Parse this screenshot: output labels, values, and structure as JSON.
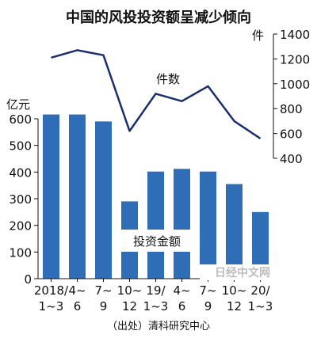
{
  "chart_data": {
    "type": "bar",
    "title": "中国的风投投资额呈减少倾向",
    "categories": [
      {
        "line1": "2018/",
        "line2": "1~3"
      },
      {
        "line1": "4~",
        "line2": "6"
      },
      {
        "line1": "7~",
        "line2": "9"
      },
      {
        "line1": "10~",
        "line2": "12"
      },
      {
        "line1": "19/",
        "line2": "1~3"
      },
      {
        "line1": "4~",
        "line2": "6"
      },
      {
        "line1": "7~",
        "line2": "9"
      },
      {
        "line1": "10~",
        "line2": "12"
      },
      {
        "line1": "20/",
        "line2": "1~3"
      }
    ],
    "series": [
      {
        "name": "投资金额",
        "type": "bar",
        "axis": "left",
        "values": [
          616,
          616,
          590,
          290,
          402,
          412,
          402,
          355,
          250
        ]
      },
      {
        "name": "件数",
        "type": "line",
        "axis": "right",
        "values": [
          1210,
          1270,
          1230,
          620,
          920,
          860,
          980,
          700,
          560
        ]
      }
    ],
    "left_axis": {
      "unit": "亿元",
      "min": 0,
      "max": 600,
      "ticks": [
        "0",
        "100",
        "200",
        "300",
        "400",
        "500",
        "600"
      ]
    },
    "right_axis": {
      "unit": "件",
      "min": 400,
      "max": 1400,
      "ticks": [
        "400",
        "600",
        "800",
        "1000",
        "1200",
        "1400"
      ]
    },
    "source": "（出处）清科研究中心",
    "watermark": "日经中文网",
    "colors": {
      "bar": "#2f6db6",
      "line": "#1a2f6e",
      "text": "#111111"
    }
  }
}
